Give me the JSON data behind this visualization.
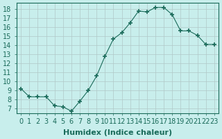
{
  "x": [
    0,
    1,
    2,
    3,
    4,
    5,
    6,
    7,
    8,
    9,
    10,
    11,
    12,
    13,
    14,
    15,
    16,
    17,
    18,
    19,
    20,
    21,
    22,
    23
  ],
  "y": [
    9.2,
    8.3,
    8.3,
    8.3,
    7.3,
    7.2,
    6.7,
    7.8,
    9.0,
    10.6,
    12.8,
    14.7,
    15.4,
    16.5,
    17.8,
    17.7,
    18.2,
    18.2,
    17.4,
    15.6,
    15.6,
    15.1,
    14.1,
    14.1
  ],
  "line_color": "#1a6b5a",
  "marker": "+",
  "marker_size": 4,
  "bg_color": "#c8eeec",
  "grid_color": "#b0c8c8",
  "xlabel": "Humidex (Indice chaleur)",
  "xlabel_fontsize": 8,
  "tick_fontsize": 7,
  "xlim": [
    -0.5,
    23.5
  ],
  "ylim": [
    6.5,
    18.7
  ],
  "yticks": [
    7,
    8,
    9,
    10,
    11,
    12,
    13,
    14,
    15,
    16,
    17,
    18
  ],
  "xticks": [
    0,
    1,
    2,
    3,
    4,
    5,
    6,
    7,
    8,
    9,
    10,
    11,
    12,
    13,
    14,
    15,
    16,
    17,
    18,
    19,
    20,
    21,
    22,
    23
  ]
}
